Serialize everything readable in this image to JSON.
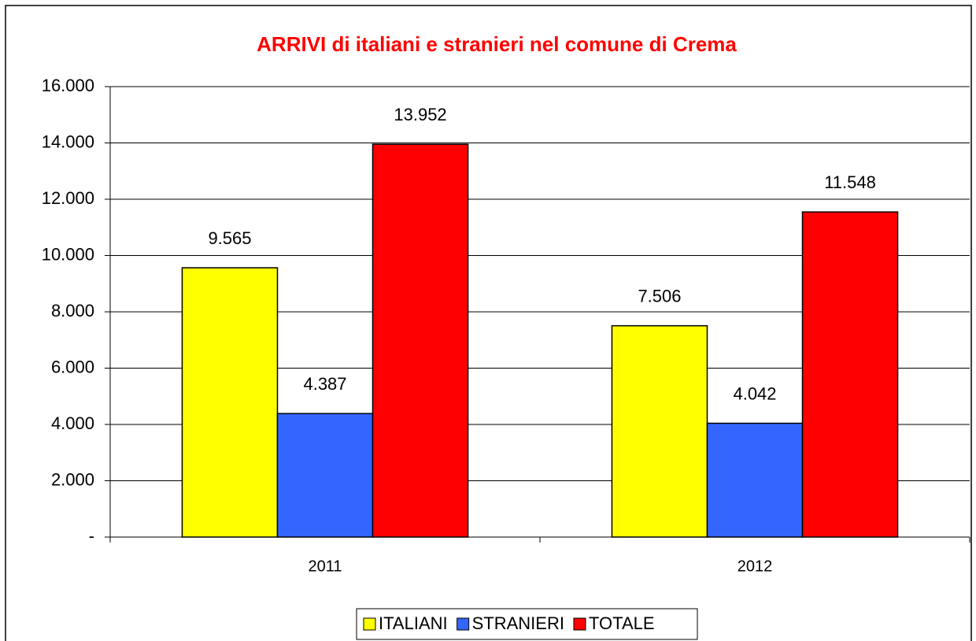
{
  "chart_data": {
    "type": "bar",
    "title": "ARRIVI di italiani e stranieri nel comune di Crema",
    "categories": [
      "2011",
      "2012"
    ],
    "series": [
      {
        "name": "ITALIANI",
        "color": "#ffff00",
        "values": [
          9565,
          7506
        ],
        "value_labels": [
          "9.565",
          "7.506"
        ]
      },
      {
        "name": "STRANIERI",
        "color": "#3366ff",
        "values": [
          4387,
          4042
        ],
        "value_labels": [
          "4.387",
          "4.042"
        ]
      },
      {
        "name": "TOTALE",
        "color": "#ff0000",
        "values": [
          13952,
          11548
        ],
        "value_labels": [
          "13.952",
          "11.548"
        ]
      }
    ],
    "ylim": [
      0,
      16000
    ],
    "yticks": [
      {
        "value": 0,
        "label": "-"
      },
      {
        "value": 2000,
        "label": "2.000"
      },
      {
        "value": 4000,
        "label": "4.000"
      },
      {
        "value": 6000,
        "label": "6.000"
      },
      {
        "value": 8000,
        "label": "8.000"
      },
      {
        "value": 10000,
        "label": "10.000"
      },
      {
        "value": 12000,
        "label": "12.000"
      },
      {
        "value": 14000,
        "label": "14.000"
      },
      {
        "value": 16000,
        "label": "16.000"
      }
    ],
    "grid": true,
    "legend": "bottom"
  }
}
